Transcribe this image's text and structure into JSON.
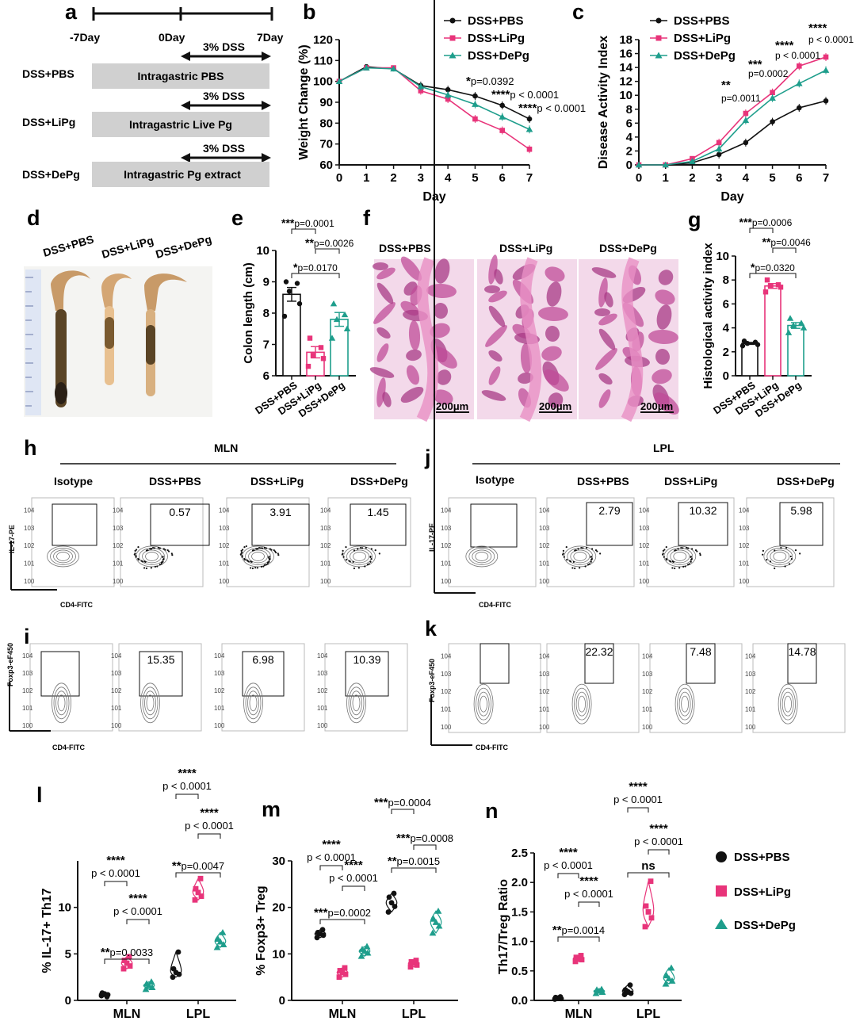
{
  "figure": {
    "panel_labels": [
      "a",
      "b",
      "c",
      "d",
      "e",
      "f",
      "g",
      "h",
      "i",
      "j",
      "k",
      "l",
      "m",
      "n"
    ],
    "legend_symbols": {
      "DSS+PBS": "circle",
      "DSS+LiPg": "square",
      "DSS+DePg": "triangle"
    },
    "colors": {
      "pbs": "#111111",
      "lipg": "#e8347a",
      "depg": "#1e9e8c",
      "bar_fill": "#d0d0d0",
      "hist_pink": "#d86aa8"
    }
  },
  "panel_a": {
    "timeline_labels": [
      "-7Day",
      "0Day",
      "7Day"
    ],
    "dss_label": "3% DSS",
    "rows": [
      {
        "group": "DSS+PBS",
        "treatment": "Intragastric PBS"
      },
      {
        "group": "DSS+LiPg",
        "treatment": "Intragastric Live Pg"
      },
      {
        "group": "DSS+DePg",
        "treatment": "Intragastric Pg extract"
      }
    ]
  },
  "panel_d": {
    "labels": [
      "DSS+PBS",
      "DSS+LiPg",
      "DSS+DePg"
    ]
  },
  "panel_f": {
    "labels": [
      "DSS+PBS",
      "DSS+LiPg",
      "DSS+DePg"
    ],
    "scale_bar": "200μm"
  },
  "flow_h": {
    "section": "MLN",
    "headers": [
      "Isotype",
      "DSS+PBS",
      "DSS+LiPg",
      "DSS+DePg"
    ],
    "values": [
      "0.57",
      "3.91",
      "1.45"
    ],
    "ylabel": "IL-17-PE",
    "xlabel": "CD4-FITC"
  },
  "flow_i": {
    "values": [
      "15.35",
      "6.98",
      "10.39"
    ],
    "ylabel": "Foxp3-eF450",
    "xlabel": "CD4-FITC"
  },
  "flow_j": {
    "section": "LPL",
    "headers": [
      "Isotype",
      "DSS+PBS",
      "DSS+LiPg",
      "DSS+DePg"
    ],
    "values": [
      "2.79",
      "10.32",
      "5.98"
    ],
    "ylabel": "IL-17-PE",
    "xlabel": "CD4-FITC"
  },
  "flow_k": {
    "values": [
      "22.32",
      "7.48",
      "14.78"
    ],
    "ylabel": "Foxp3-eF450",
    "xlabel": "CD4-FITC"
  },
  "legend": {
    "items": [
      "DSS+PBS",
      "DSS+LiPg",
      "DSS+DePg"
    ]
  },
  "chart_data": [
    {
      "id": "b",
      "type": "line",
      "xlabel": "Day",
      "ylabel": "Weight Change (%)",
      "xlim": [
        0,
        7
      ],
      "ylim": [
        60,
        120
      ],
      "xticks": [
        0,
        1,
        2,
        3,
        4,
        5,
        6,
        7
      ],
      "yticks": [
        60,
        70,
        80,
        90,
        100,
        110,
        120
      ],
      "x": [
        0,
        1,
        2,
        3,
        4,
        5,
        6,
        7
      ],
      "series": [
        {
          "name": "DSS+PBS",
          "values": [
            100,
            107,
            106,
            98,
            96,
            93,
            88.5,
            82
          ]
        },
        {
          "name": "DSS+LiPg",
          "values": [
            100,
            106.5,
            106.5,
            95.5,
            91.5,
            82,
            76.5,
            67.5
          ]
        },
        {
          "name": "DSS+DePg",
          "values": [
            100,
            106.5,
            106,
            97.5,
            93.5,
            89,
            83,
            77
          ]
        }
      ],
      "legend_position": "top-right",
      "annotations": [
        {
          "stars": "*",
          "p": "p=0.0392",
          "x": 5,
          "y": 93
        },
        {
          "stars": "****",
          "p": "p < 0.0001",
          "x": 6,
          "y": 88.5
        },
        {
          "stars": "****",
          "p": "p < 0.0001",
          "x": 7,
          "y": 82
        }
      ]
    },
    {
      "id": "c",
      "type": "line",
      "xlabel": "Day",
      "ylabel": "Disease Activity Index",
      "xlim": [
        0,
        7
      ],
      "ylim": [
        0,
        18
      ],
      "xticks": [
        0,
        1,
        2,
        3,
        4,
        5,
        6,
        7
      ],
      "yticks": [
        0,
        2,
        4,
        6,
        8,
        10,
        12,
        14,
        16,
        18
      ],
      "x": [
        0,
        1,
        2,
        3,
        4,
        5,
        6,
        7
      ],
      "series": [
        {
          "name": "DSS+PBS",
          "values": [
            0,
            0,
            0.3,
            1.5,
            3.2,
            6.2,
            8.2,
            9.2
          ]
        },
        {
          "name": "DSS+LiPg",
          "values": [
            0,
            0,
            0.9,
            3.2,
            7.4,
            10.4,
            14.2,
            15.5
          ]
        },
        {
          "name": "DSS+DePg",
          "values": [
            0,
            0,
            0.5,
            2.3,
            6.4,
            9.6,
            11.7,
            13.6
          ]
        }
      ],
      "legend_position": "top-left",
      "annotations": [
        {
          "stars": "**",
          "p": "p=0.0011",
          "x": 4
        },
        {
          "stars": "***",
          "p": "p=0.0002",
          "x": 5
        },
        {
          "stars": "****",
          "p": "p < 0.0001",
          "x": 6
        },
        {
          "stars": "****",
          "p": "p < 0.0001",
          "x": 7
        }
      ]
    },
    {
      "id": "e",
      "type": "bar",
      "ylabel": "Colon length (cm)",
      "ylim": [
        6,
        10
      ],
      "yticks": [
        6,
        7,
        8,
        9,
        10
      ],
      "categories": [
        "DSS+PBS",
        "DSS+LiPg",
        "DSS+DePg"
      ],
      "values": [
        8.6,
        6.75,
        7.8
      ],
      "points": [
        [
          9.0,
          8.95,
          8.7,
          8.3,
          7.9
        ],
        [
          7.2,
          6.9,
          6.65,
          6.55,
          6.3
        ],
        [
          8.3,
          7.95,
          7.8,
          7.5,
          7.2
        ]
      ],
      "annotations": [
        {
          "stars": "***",
          "p": "p=0.0001",
          "pair": [
            0,
            1
          ]
        },
        {
          "stars": "**",
          "p": "p=0.0026",
          "pair": [
            1,
            2
          ]
        },
        {
          "stars": "*",
          "p": "p=0.0170",
          "pair": [
            0,
            2
          ]
        }
      ]
    },
    {
      "id": "g",
      "type": "bar",
      "ylabel": "Histological activity index",
      "ylim": [
        0,
        10
      ],
      "yticks": [
        0,
        2,
        4,
        6,
        8,
        10
      ],
      "categories": [
        "DSS+PBS",
        "DSS+LiPg",
        "DSS+DePg"
      ],
      "values": [
        2.7,
        7.5,
        4.2
      ],
      "points": [
        [
          2.9,
          2.8,
          2.7,
          2.6,
          2.5
        ],
        [
          8.0,
          7.6,
          7.5,
          7.4,
          7.0
        ],
        [
          4.8,
          4.4,
          4.2,
          4.0,
          3.6
        ]
      ],
      "annotations": [
        {
          "stars": "***",
          "p": "p=0.0006",
          "pair": [
            0,
            1
          ]
        },
        {
          "stars": "**",
          "p": "p=0.0046",
          "pair": [
            1,
            2
          ]
        },
        {
          "stars": "*",
          "p": "p=0.0320",
          "pair": [
            0,
            2
          ]
        }
      ]
    },
    {
      "id": "l",
      "type": "violin",
      "ylabel": "% IL-17+ Th17",
      "ylim": [
        0,
        15
      ],
      "yticks": [
        0,
        5,
        10
      ],
      "categories": [
        "MLN",
        "LPL"
      ],
      "series": [
        {
          "name": "DSS+PBS",
          "values": [
            [
              0.5,
              0.6,
              0.7,
              0.8,
              0.4
            ],
            [
              2.5,
              2.8,
              3.0,
              3.4,
              5.2
            ]
          ]
        },
        {
          "name": "DSS+LiPg",
          "values": [
            [
              3.4,
              3.7,
              4.0,
              4.3,
              4.7
            ],
            [
              10.8,
              11.2,
              11.6,
              12.0,
              13.1
            ]
          ]
        },
        {
          "name": "DSS+DePg",
          "values": [
            [
              1.2,
              1.4,
              1.6,
              1.8,
              2.0
            ],
            [
              5.7,
              6.0,
              6.3,
              6.6,
              7.3
            ]
          ]
        }
      ],
      "annotations": [
        {
          "stars": "****",
          "p": "p < 0.0001",
          "group": "MLN",
          "pair": [
            0,
            1
          ]
        },
        {
          "stars": "****",
          "p": "p < 0.0001",
          "group": "MLN",
          "pair": [
            1,
            2
          ]
        },
        {
          "stars": "**",
          "p": "p=0.0033",
          "group": "MLN",
          "pair": [
            0,
            2
          ]
        },
        {
          "stars": "****",
          "p": "p < 0.0001",
          "group": "LPL",
          "pair": [
            0,
            1
          ]
        },
        {
          "stars": "****",
          "p": "p < 0.0001",
          "group": "LPL",
          "pair": [
            1,
            2
          ]
        },
        {
          "stars": "**",
          "p": "p=0.0047",
          "group": "LPL",
          "pair": [
            0,
            2
          ]
        }
      ]
    },
    {
      "id": "m",
      "type": "violin",
      "ylabel": "% Foxp3+ Treg",
      "ylim": [
        0,
        30
      ],
      "yticks": [
        0,
        10,
        20,
        30
      ],
      "categories": [
        "MLN",
        "LPL"
      ],
      "series": [
        {
          "name": "DSS+PBS",
          "values": [
            [
              13.5,
              14.0,
              14.3,
              14.6,
              15.2
            ],
            [
              19.0,
              20.2,
              21.0,
              22.2,
              23.0
            ]
          ]
        },
        {
          "name": "DSS+LiPg",
          "values": [
            [
              5.0,
              5.6,
              6.0,
              6.4,
              7.0
            ],
            [
              7.2,
              7.6,
              8.0,
              8.3,
              8.6
            ]
          ]
        },
        {
          "name": "DSS+DePg",
          "values": [
            [
              9.5,
              10.2,
              10.6,
              11.0,
              11.6
            ],
            [
              14.5,
              16.0,
              16.8,
              17.5,
              19.2
            ]
          ]
        }
      ],
      "annotations": [
        {
          "stars": "****",
          "p": "p < 0.0001",
          "group": "MLN",
          "pair": [
            0,
            1
          ]
        },
        {
          "stars": "****",
          "p": "p < 0.0001",
          "group": "MLN",
          "pair": [
            1,
            2
          ]
        },
        {
          "stars": "***",
          "p": "p=0.0002",
          "group": "MLN",
          "pair": [
            0,
            2
          ]
        },
        {
          "stars": "***",
          "p": "p=0.0004",
          "group": "LPL",
          "pair": [
            0,
            1
          ]
        },
        {
          "stars": "***",
          "p": "p=0.0008",
          "group": "LPL",
          "pair": [
            1,
            2
          ]
        },
        {
          "stars": "**",
          "p": "p=0.0015",
          "group": "LPL",
          "pair": [
            0,
            2
          ]
        }
      ]
    },
    {
      "id": "n",
      "type": "violin",
      "ylabel": "Th17/Treg Ratio",
      "ylim": [
        0,
        2.5
      ],
      "yticks": [
        0.0,
        0.5,
        1.0,
        1.5,
        2.0,
        2.5
      ],
      "categories": [
        "MLN",
        "LPL"
      ],
      "series": [
        {
          "name": "DSS+PBS",
          "values": [
            [
              0.02,
              0.03,
              0.04,
              0.05,
              0.06
            ],
            [
              0.1,
              0.12,
              0.15,
              0.18,
              0.26
            ]
          ]
        },
        {
          "name": "DSS+LiPg",
          "values": [
            [
              0.66,
              0.69,
              0.71,
              0.73,
              0.76
            ],
            [
              1.25,
              1.4,
              1.5,
              1.6,
              2.02
            ]
          ]
        },
        {
          "name": "DSS+DePg",
          "values": [
            [
              0.12,
              0.14,
              0.16,
              0.18,
              0.19
            ],
            [
              0.28,
              0.33,
              0.37,
              0.42,
              0.55
            ]
          ]
        }
      ],
      "annotations": [
        {
          "stars": "****",
          "p": "p < 0.0001",
          "group": "MLN",
          "pair": [
            0,
            1
          ]
        },
        {
          "stars": "****",
          "p": "p < 0.0001",
          "group": "MLN",
          "pair": [
            1,
            2
          ]
        },
        {
          "stars": "**",
          "p": "p=0.0014",
          "group": "MLN",
          "pair": [
            0,
            2
          ]
        },
        {
          "stars": "****",
          "p": "p < 0.0001",
          "group": "LPL",
          "pair": [
            0,
            1
          ]
        },
        {
          "stars": "****",
          "p": "p < 0.0001",
          "group": "LPL",
          "pair": [
            1,
            2
          ]
        },
        {
          "stars": "ns",
          "p": "",
          "group": "LPL",
          "pair": [
            0,
            2
          ]
        }
      ]
    }
  ]
}
